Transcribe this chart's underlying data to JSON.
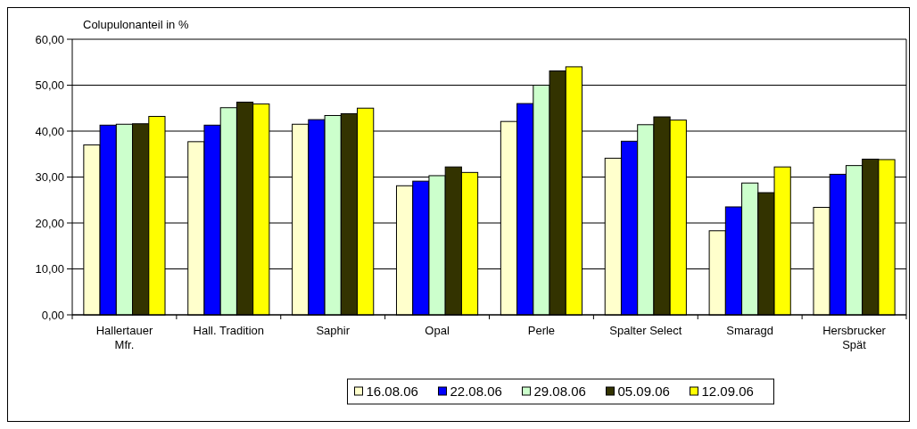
{
  "chart_data": {
    "type": "bar",
    "ylabel": "Colupulonanteil in %",
    "categories": [
      "Hallertauer Mfr.",
      "Hall. Tradition",
      "Saphir",
      "Opal",
      "Perle",
      "Spalter Select",
      "Smaragd",
      "Hersbrucker Spät"
    ],
    "series": [
      {
        "name": "16.08.06",
        "color": "#ffffcc",
        "values": [
          37.0,
          37.7,
          41.5,
          28.1,
          42.1,
          34.1,
          18.3,
          23.4
        ]
      },
      {
        "name": "22.08.06",
        "color": "#0000ff",
        "values": [
          41.3,
          41.3,
          42.5,
          29.1,
          46.0,
          37.8,
          23.5,
          30.6
        ]
      },
      {
        "name": "29.08.06",
        "color": "#ccffcc",
        "values": [
          41.5,
          45.1,
          43.4,
          30.3,
          50.0,
          41.4,
          28.7,
          32.5
        ]
      },
      {
        "name": "05.09.06",
        "color": "#333300",
        "values": [
          41.6,
          46.3,
          43.8,
          32.2,
          53.1,
          43.1,
          26.6,
          33.9
        ]
      },
      {
        "name": "12.09.06",
        "color": "#ffff00",
        "values": [
          43.2,
          45.9,
          45.0,
          31.0,
          54.0,
          42.4,
          32.2,
          33.8
        ]
      }
    ],
    "ylim": [
      0,
      60
    ],
    "yticks": [
      {
        "value": 0,
        "label": "0,00"
      },
      {
        "value": 10,
        "label": "10,00"
      },
      {
        "value": 20,
        "label": "20,00"
      },
      {
        "value": 30,
        "label": "30,00"
      },
      {
        "value": 40,
        "label": "40,00"
      },
      {
        "value": 50,
        "label": "50,00"
      },
      {
        "value": 60,
        "label": "60,00"
      }
    ],
    "grid": "y",
    "legend": "bottom"
  }
}
